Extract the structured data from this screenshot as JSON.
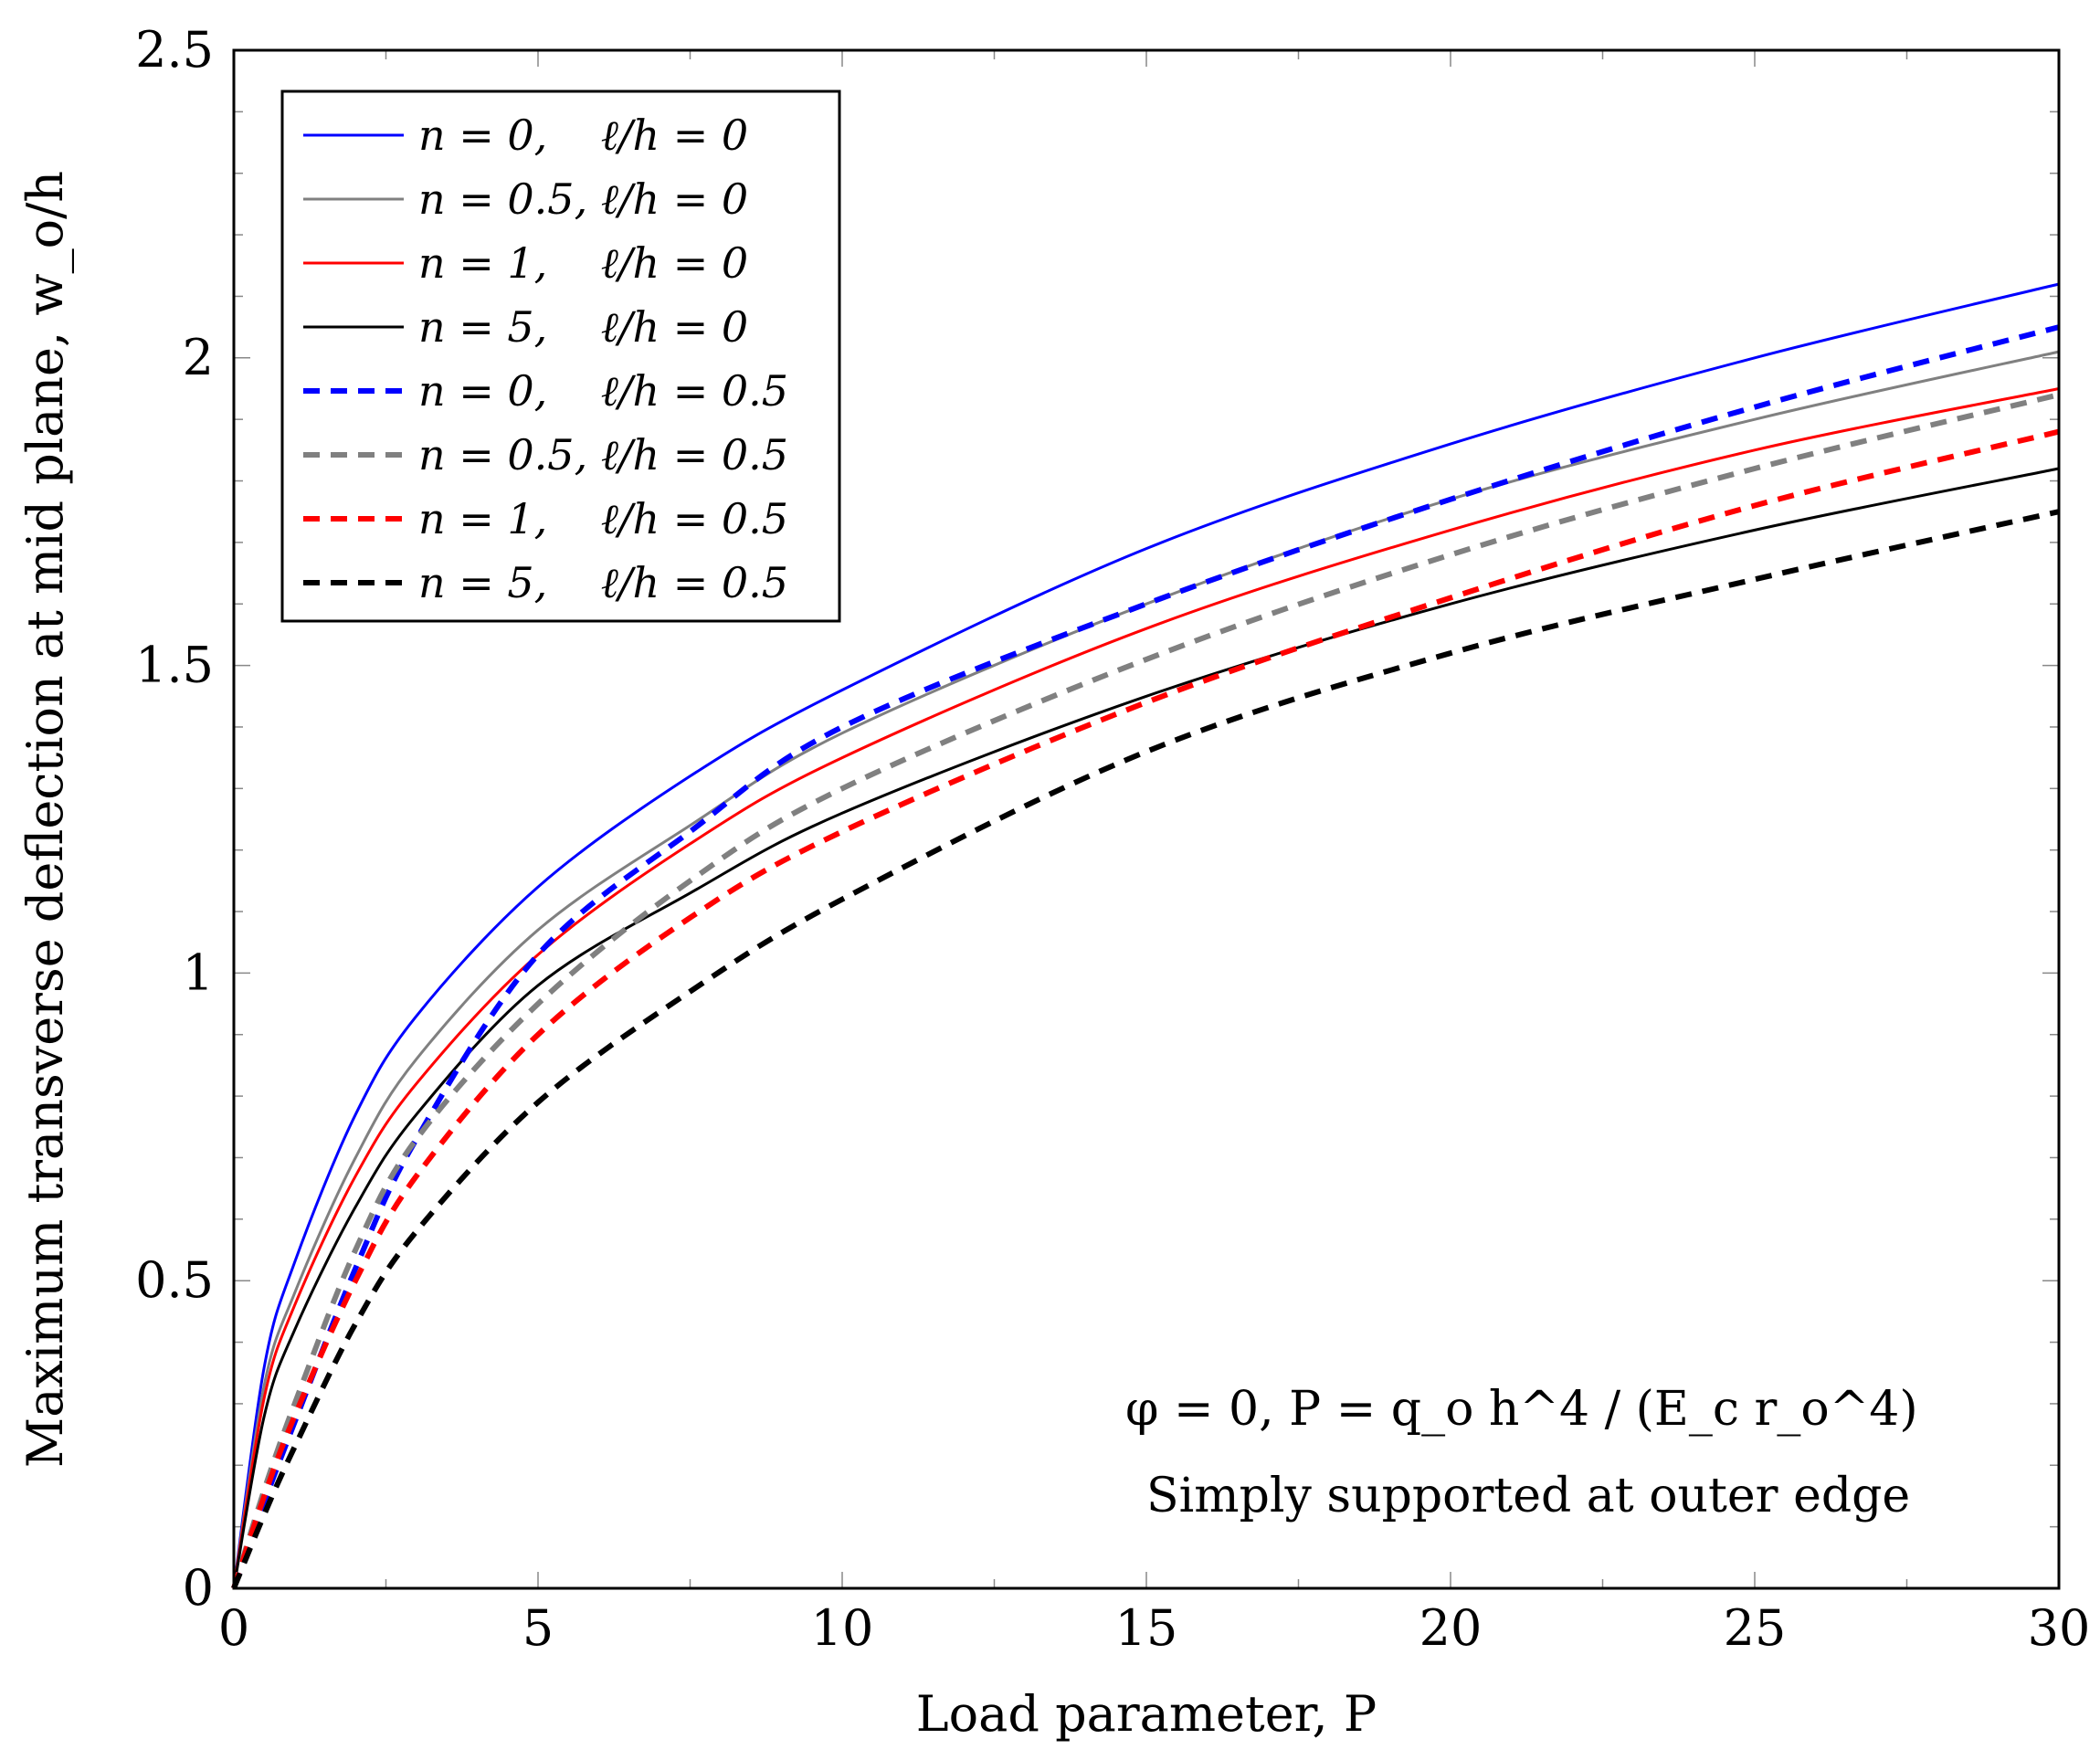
{
  "chart_data": {
    "type": "line",
    "xlabel": "Load parameter, P",
    "ylabel": "Maximum transverse deflection at mid plane, w_o/h",
    "xlim": [
      0,
      30
    ],
    "ylim": [
      0,
      2.5
    ],
    "x_ticks": [
      "0",
      "5",
      "10",
      "15",
      "20",
      "25",
      "30"
    ],
    "y_ticks": [
      "0",
      "0.5",
      "1",
      "1.5",
      "2",
      "2.5"
    ],
    "legend_position": "top-left",
    "annotation_line1": "φ = 0, P = q_o h^4 / (E_c r_o^4)",
    "annotation_line2": "Simply supported at outer edge",
    "series": [
      {
        "name": "n = 0,    ℓ/h = 0",
        "color": "#0000ff",
        "style": "solid",
        "x": [
          0,
          0.5,
          1,
          2,
          3,
          5,
          7.5,
          10,
          15,
          20,
          25,
          30
        ],
        "y": [
          0,
          0.36,
          0.53,
          0.77,
          0.93,
          1.14,
          1.32,
          1.46,
          1.69,
          1.86,
          2.0,
          2.12
        ]
      },
      {
        "name": "n = 0.5, ℓ/h = 0",
        "color": "#808080",
        "style": "solid",
        "x": [
          0,
          0.5,
          1,
          2,
          3,
          5,
          7.5,
          10,
          15,
          20,
          25,
          30
        ],
        "y": [
          0,
          0.33,
          0.48,
          0.7,
          0.86,
          1.07,
          1.24,
          1.39,
          1.6,
          1.77,
          1.9,
          2.01
        ]
      },
      {
        "name": "n = 1,    ℓ/h = 0",
        "color": "#ff0000",
        "style": "solid",
        "x": [
          0,
          0.5,
          1,
          2,
          3,
          5,
          7.5,
          10,
          15,
          20,
          25,
          30
        ],
        "y": [
          0,
          0.31,
          0.46,
          0.67,
          0.82,
          1.03,
          1.21,
          1.35,
          1.56,
          1.72,
          1.85,
          1.95
        ]
      },
      {
        "name": "n = 5,    ℓ/h = 0",
        "color": "#000000",
        "style": "solid",
        "x": [
          0,
          0.5,
          1,
          2,
          3,
          5,
          7.5,
          10,
          15,
          20,
          25,
          30
        ],
        "y": [
          0,
          0.28,
          0.42,
          0.62,
          0.77,
          0.98,
          1.13,
          1.26,
          1.45,
          1.6,
          1.72,
          1.82
        ]
      },
      {
        "name": "n = 0,    ℓ/h = 0.5",
        "color": "#0000ff",
        "style": "dashed",
        "x": [
          0,
          0.5,
          1,
          2,
          3,
          5,
          7.5,
          10,
          15,
          20,
          25,
          30
        ],
        "y": [
          0,
          0.14,
          0.27,
          0.52,
          0.73,
          1.03,
          1.23,
          1.4,
          1.6,
          1.77,
          1.92,
          2.05
        ]
      },
      {
        "name": "n = 0.5, ℓ/h = 0.5",
        "color": "#808080",
        "style": "dashed",
        "x": [
          0,
          0.5,
          1,
          2,
          3,
          5,
          7.5,
          10,
          15,
          20,
          25,
          30
        ],
        "y": [
          0,
          0.16,
          0.3,
          0.55,
          0.73,
          0.95,
          1.15,
          1.3,
          1.51,
          1.68,
          1.82,
          1.94
        ]
      },
      {
        "name": "n = 1,    ℓ/h = 0.5",
        "color": "#ff0000",
        "style": "dashed",
        "x": [
          0,
          0.5,
          1,
          2,
          3,
          5,
          7.5,
          10,
          15,
          20,
          25,
          30
        ],
        "y": [
          0,
          0.15,
          0.28,
          0.5,
          0.67,
          0.9,
          1.09,
          1.23,
          1.44,
          1.61,
          1.76,
          1.88
        ]
      },
      {
        "name": "n = 5,    ℓ/h = 0.5",
        "color": "#000000",
        "style": "dashed",
        "x": [
          0,
          0.5,
          1,
          2,
          3,
          5,
          7.5,
          10,
          15,
          20,
          25,
          30
        ],
        "y": [
          0,
          0.12,
          0.23,
          0.43,
          0.58,
          0.79,
          0.97,
          1.12,
          1.36,
          1.52,
          1.64,
          1.75
        ]
      }
    ]
  }
}
